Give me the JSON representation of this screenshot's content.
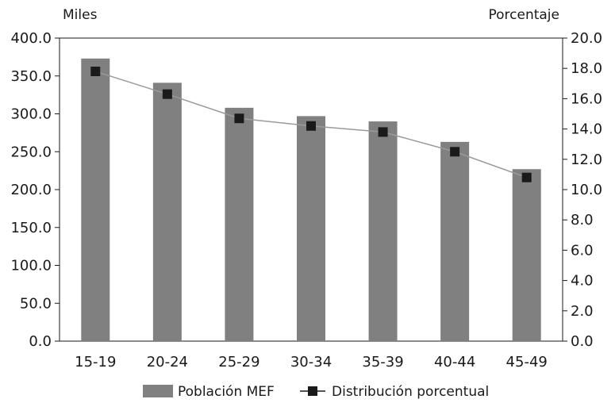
{
  "chart_data": {
    "type": "bar",
    "categories": [
      "15-19",
      "20-24",
      "25-29",
      "30-34",
      "35-39",
      "40-44",
      "45-49"
    ],
    "series": [
      {
        "name": "Población MEF",
        "type": "bar",
        "axis": "left",
        "color": "#808080",
        "values": [
          373,
          341,
          308,
          297,
          290,
          263,
          227
        ]
      },
      {
        "name": "Distribución porcentual",
        "type": "line",
        "axis": "right",
        "color": "#1a1a1a",
        "line_color": "#9a9a9a",
        "marker": "square",
        "values": [
          17.8,
          16.3,
          14.7,
          14.2,
          13.8,
          12.5,
          10.8
        ]
      }
    ],
    "y_left": {
      "unit_label": "Miles",
      "ylim": [
        0,
        400
      ],
      "ticks": [
        "400.0",
        "350.0",
        "300.0",
        "250.0",
        "200.0",
        "150.0",
        "100.0",
        "50.0",
        "0.0"
      ]
    },
    "y_right": {
      "unit_label": "Porcentaje",
      "ylim": [
        0,
        20
      ],
      "ticks": [
        "20.0",
        "18.0",
        "16.0",
        "14.0",
        "12.0",
        "10.0",
        "8.0",
        "6.0",
        "4.0",
        "2.0",
        "0.0"
      ]
    },
    "grid": false,
    "legend_position": "bottom"
  }
}
